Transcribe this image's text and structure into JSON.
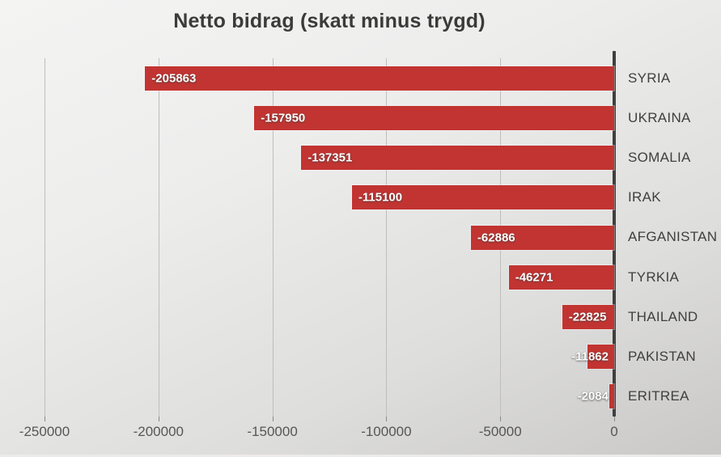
{
  "title": "Netto bidrag (skatt minus trygd)",
  "chart_data": {
    "type": "bar",
    "orientation": "horizontal",
    "title": "Netto bidrag (skatt minus trygd)",
    "categories": [
      "SYRIA",
      "UKRAINA",
      "SOMALIA",
      "IRAK",
      "AFGANISTAN",
      "TYRKIA",
      "THAILAND",
      "PAKISTAN",
      "ERITREA"
    ],
    "values": [
      -205863,
      -157950,
      -137351,
      -115100,
      -62886,
      -46271,
      -22825,
      -11862,
      -2084
    ],
    "data_labels": [
      "-205863",
      "-157950",
      "-137351",
      "-115100",
      "-62886",
      "-46271",
      "-22825",
      "-11862",
      "-2084"
    ],
    "xlabel": "",
    "ylabel": "",
    "xlim": [
      -250000,
      0
    ],
    "x_ticks": [
      {
        "value": -250000,
        "label": "-250000"
      },
      {
        "value": -200000,
        "label": "-200000"
      },
      {
        "value": -150000,
        "label": "-150000"
      },
      {
        "value": -100000,
        "label": "-100000"
      },
      {
        "value": -50000,
        "label": "-50000"
      },
      {
        "value": 0,
        "label": "0"
      }
    ],
    "grid": true,
    "legend": false,
    "colors": {
      "bar": "#c23431",
      "bar_label_text": "#ffffff",
      "title_text": "#3b3b3b",
      "category_text": "#3f3f3f",
      "tick_text": "#565656",
      "gridline": "#bfbebd",
      "zero_axis_line": "#3f3f3f"
    }
  }
}
